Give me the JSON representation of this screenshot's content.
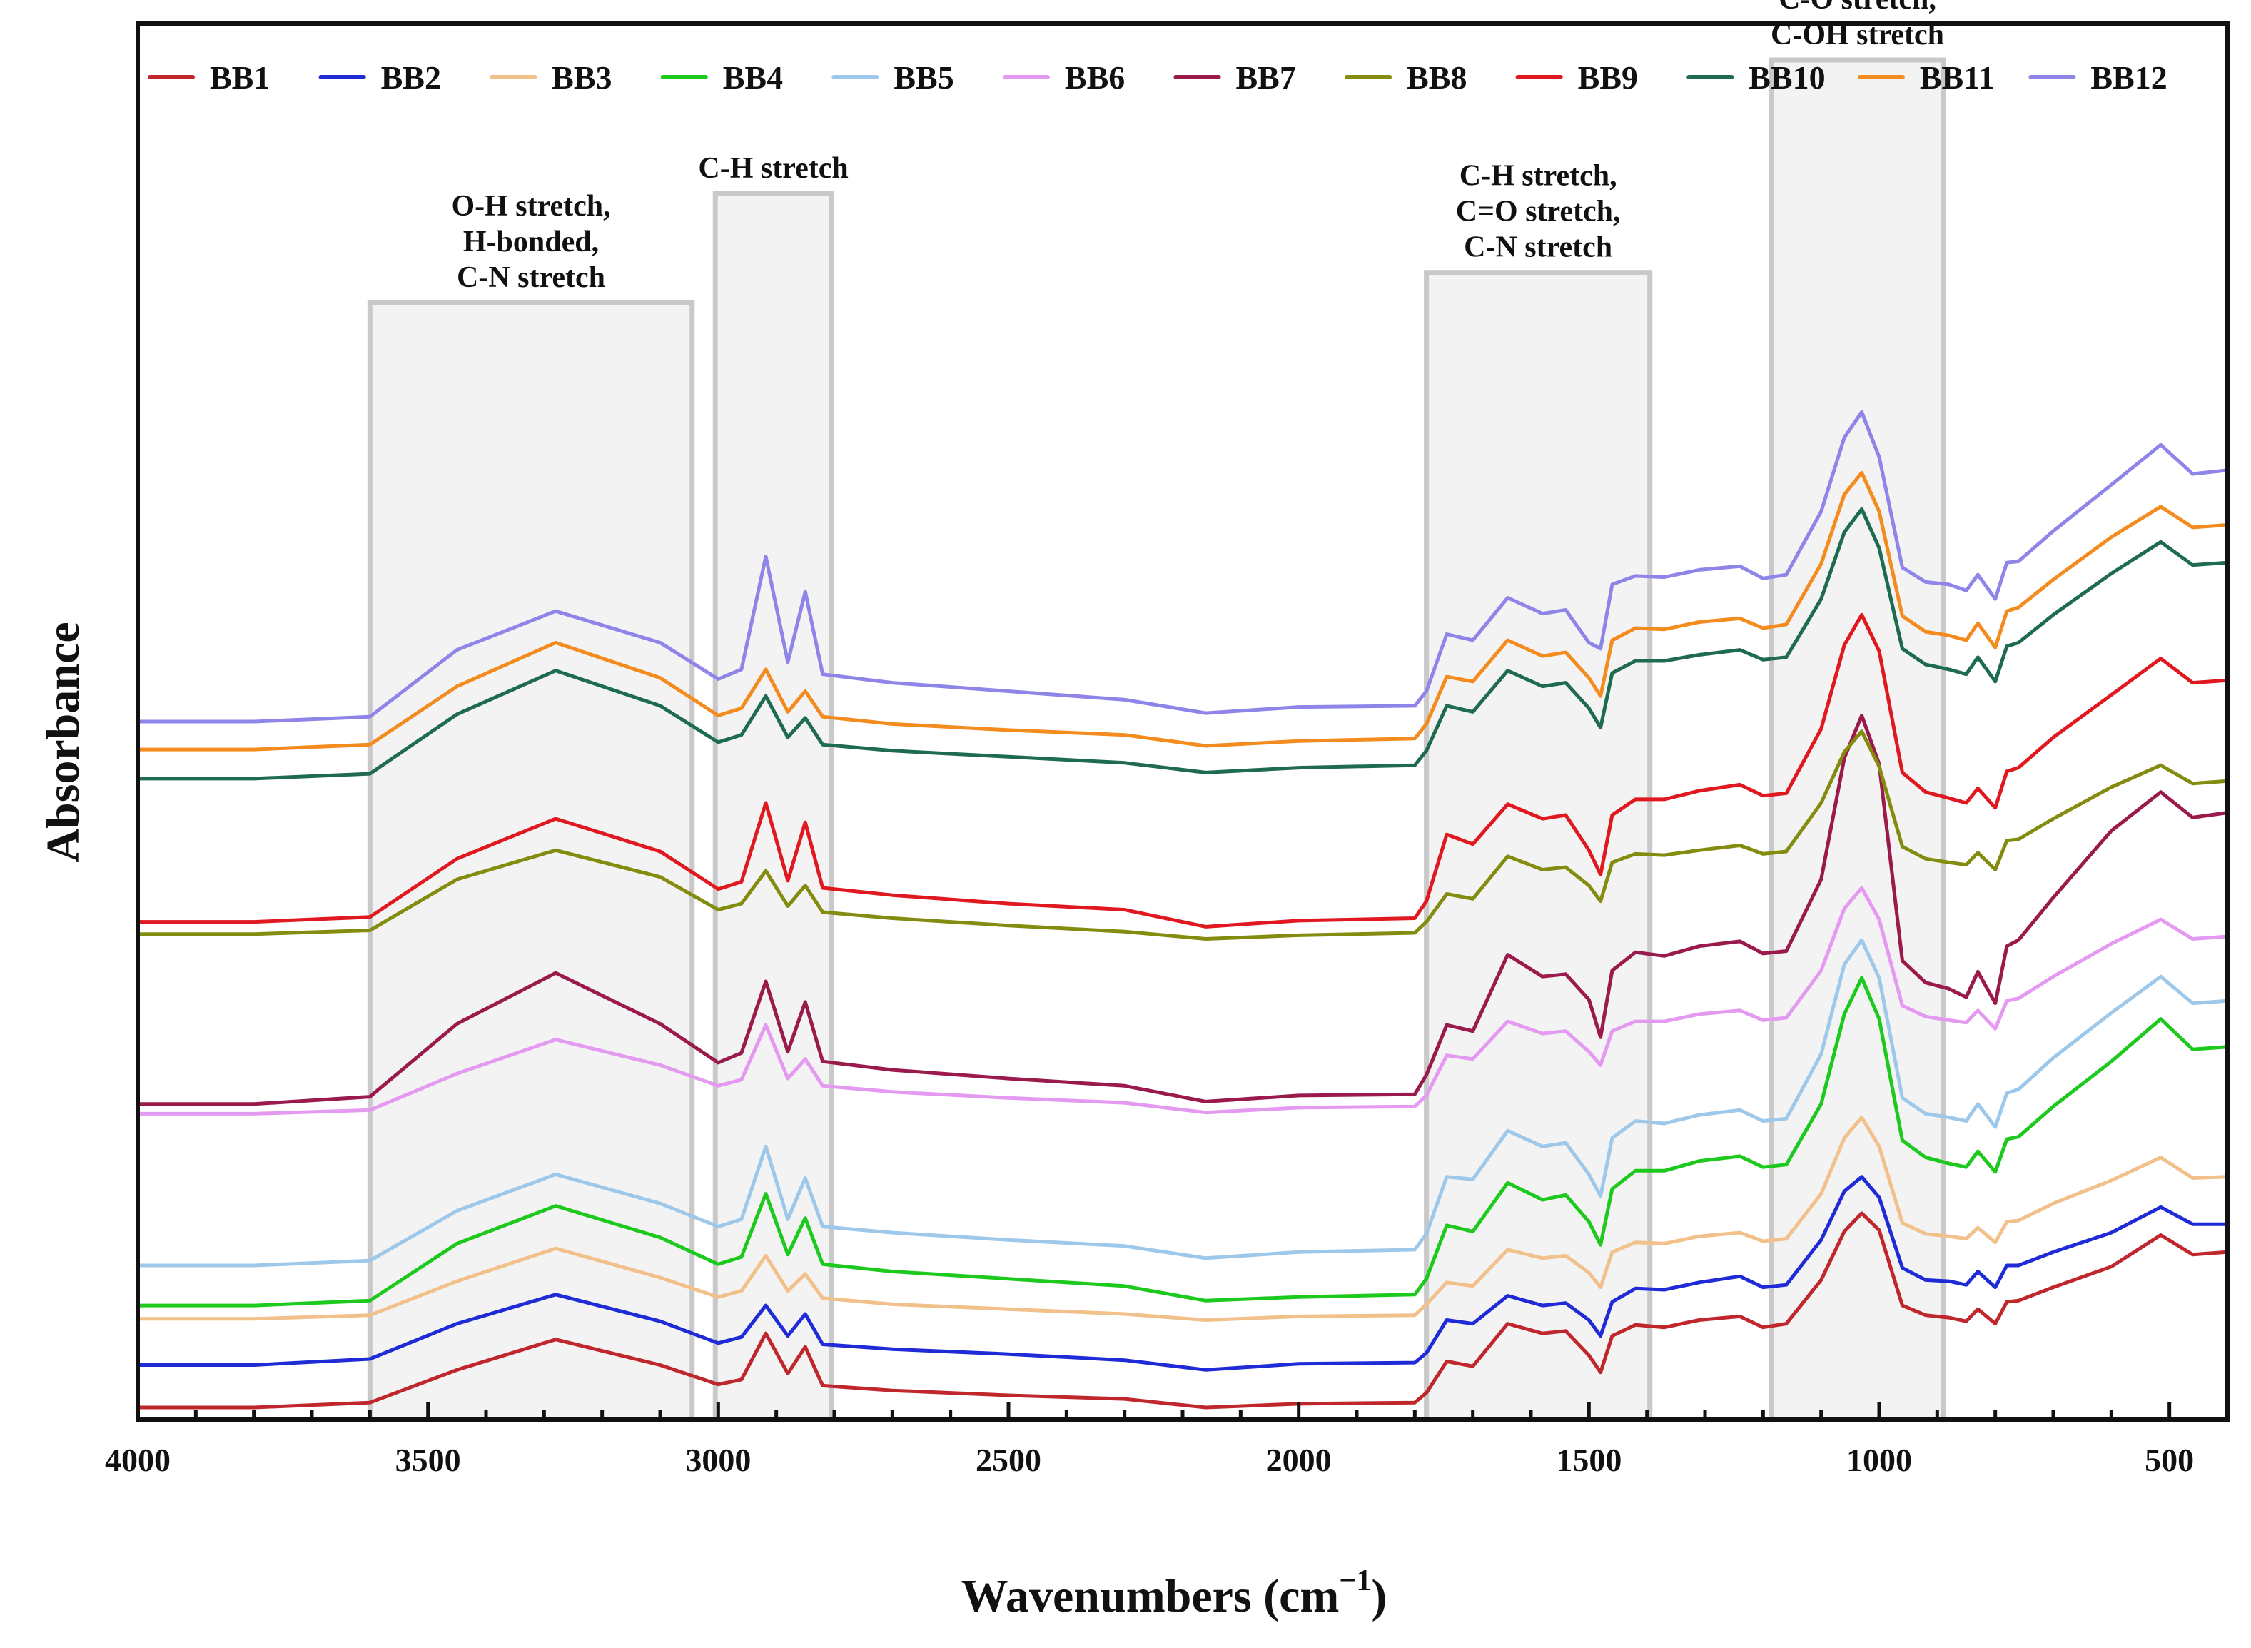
{
  "chart_data": {
    "type": "line",
    "title": "",
    "xlabel": "Wavenumbers (cm",
    "xlabel_sup": "−1",
    "xlabel_close": ")",
    "ylabel": "Absorbance",
    "xlim": [
      4000,
      400
    ],
    "x_reversed": true,
    "ylim": [
      0,
      11.5
    ],
    "yticks_shown": false,
    "grid": false,
    "legend_position": "top",
    "xticks": [
      {
        "value": 4000,
        "label": "4000"
      },
      {
        "value": 3500,
        "label": "3500"
      },
      {
        "value": 3000,
        "label": "3000"
      },
      {
        "value": 2500,
        "label": "2500"
      },
      {
        "value": 2000,
        "label": "2000"
      },
      {
        "value": 1500,
        "label": "1500"
      },
      {
        "value": 1000,
        "label": "1000"
      },
      {
        "value": 500,
        "label": "500"
      }
    ],
    "x": [
      4000,
      3800,
      3600,
      3450,
      3280,
      3100,
      3000,
      2960,
      2918,
      2880,
      2850,
      2820,
      2700,
      2500,
      2300,
      2160,
      2000,
      1800,
      1780,
      1745,
      1700,
      1640,
      1580,
      1540,
      1500,
      1480,
      1460,
      1420,
      1370,
      1310,
      1240,
      1200,
      1160,
      1100,
      1060,
      1030,
      1000,
      960,
      920,
      880,
      850,
      830,
      800,
      780,
      760,
      700,
      600,
      515,
      460,
      400
    ],
    "series": [
      {
        "name": "BB1",
        "color": "#c0272d",
        "values": [
          0.1,
          0.1,
          0.14,
          0.41,
          0.66,
          0.45,
          0.29,
          0.33,
          0.71,
          0.38,
          0.6,
          0.28,
          0.24,
          0.2,
          0.17,
          0.1,
          0.13,
          0.14,
          0.22,
          0.48,
          0.44,
          0.79,
          0.71,
          0.73,
          0.53,
          0.39,
          0.69,
          0.78,
          0.76,
          0.82,
          0.85,
          0.76,
          0.79,
          1.15,
          1.55,
          1.7,
          1.56,
          0.94,
          0.86,
          0.84,
          0.81,
          0.91,
          0.79,
          0.97,
          0.98,
          1.09,
          1.26,
          1.52,
          1.36,
          1.38
        ]
      },
      {
        "name": "BB2",
        "color": "#1f2bd6",
        "values": [
          0.45,
          0.45,
          0.5,
          0.79,
          1.03,
          0.81,
          0.63,
          0.68,
          0.94,
          0.69,
          0.87,
          0.62,
          0.58,
          0.54,
          0.49,
          0.41,
          0.46,
          0.47,
          0.55,
          0.82,
          0.79,
          1.02,
          0.94,
          0.96,
          0.82,
          0.69,
          0.97,
          1.08,
          1.07,
          1.13,
          1.18,
          1.09,
          1.11,
          1.48,
          1.88,
          2.0,
          1.83,
          1.25,
          1.15,
          1.14,
          1.11,
          1.22,
          1.09,
          1.27,
          1.27,
          1.38,
          1.54,
          1.75,
          1.61,
          1.61
        ]
      },
      {
        "name": "BB3",
        "color": "#f2c08a",
        "values": [
          0.83,
          0.83,
          0.86,
          1.14,
          1.41,
          1.17,
          1.01,
          1.06,
          1.35,
          1.06,
          1.2,
          1.0,
          0.95,
          0.91,
          0.87,
          0.82,
          0.85,
          0.86,
          0.95,
          1.13,
          1.1,
          1.4,
          1.33,
          1.35,
          1.21,
          1.09,
          1.38,
          1.46,
          1.45,
          1.51,
          1.54,
          1.47,
          1.49,
          1.86,
          2.32,
          2.49,
          2.25,
          1.62,
          1.53,
          1.51,
          1.49,
          1.58,
          1.46,
          1.63,
          1.64,
          1.78,
          1.97,
          2.16,
          1.99,
          2.0
        ]
      },
      {
        "name": "BB4",
        "color": "#1ec91e",
        "values": [
          0.94,
          0.94,
          0.98,
          1.45,
          1.76,
          1.5,
          1.28,
          1.34,
          1.86,
          1.36,
          1.66,
          1.28,
          1.22,
          1.16,
          1.1,
          0.98,
          1.01,
          1.03,
          1.16,
          1.6,
          1.55,
          1.95,
          1.81,
          1.85,
          1.63,
          1.44,
          1.9,
          2.05,
          2.05,
          2.13,
          2.17,
          2.08,
          2.1,
          2.6,
          3.34,
          3.64,
          3.3,
          2.3,
          2.16,
          2.11,
          2.08,
          2.21,
          2.04,
          2.31,
          2.33,
          2.58,
          2.95,
          3.3,
          3.05,
          3.07
        ]
      },
      {
        "name": "BB5",
        "color": "#9ec8ea",
        "values": [
          1.27,
          1.27,
          1.31,
          1.72,
          2.02,
          1.78,
          1.59,
          1.65,
          2.25,
          1.65,
          1.99,
          1.59,
          1.54,
          1.48,
          1.43,
          1.33,
          1.38,
          1.4,
          1.53,
          2.0,
          1.98,
          2.38,
          2.25,
          2.28,
          2.02,
          1.84,
          2.32,
          2.46,
          2.44,
          2.51,
          2.55,
          2.46,
          2.48,
          3.01,
          3.75,
          3.95,
          3.64,
          2.65,
          2.52,
          2.49,
          2.46,
          2.6,
          2.41,
          2.69,
          2.72,
          2.98,
          3.35,
          3.65,
          3.43,
          3.45
        ]
      },
      {
        "name": "BB6",
        "color": "#e49af0",
        "values": [
          2.52,
          2.52,
          2.55,
          2.85,
          3.13,
          2.92,
          2.75,
          2.8,
          3.25,
          2.81,
          2.97,
          2.75,
          2.7,
          2.65,
          2.61,
          2.53,
          2.57,
          2.58,
          2.67,
          3.0,
          2.97,
          3.28,
          3.18,
          3.2,
          3.03,
          2.92,
          3.2,
          3.28,
          3.28,
          3.34,
          3.37,
          3.29,
          3.31,
          3.7,
          4.21,
          4.38,
          4.12,
          3.41,
          3.32,
          3.29,
          3.27,
          3.37,
          3.22,
          3.45,
          3.47,
          3.65,
          3.92,
          4.12,
          3.96,
          3.98
        ]
      },
      {
        "name": "BB7",
        "color": "#9b1a4c",
        "values": [
          2.6,
          2.6,
          2.66,
          3.26,
          3.68,
          3.26,
          2.94,
          3.02,
          3.61,
          3.03,
          3.44,
          2.95,
          2.88,
          2.81,
          2.75,
          2.62,
          2.67,
          2.68,
          2.84,
          3.25,
          3.2,
          3.83,
          3.65,
          3.67,
          3.46,
          3.15,
          3.7,
          3.85,
          3.82,
          3.9,
          3.94,
          3.84,
          3.86,
          4.45,
          5.45,
          5.8,
          5.4,
          3.78,
          3.6,
          3.55,
          3.48,
          3.69,
          3.43,
          3.9,
          3.95,
          4.3,
          4.85,
          5.17,
          4.96,
          5.0
        ]
      },
      {
        "name": "BB8",
        "color": "#848c10",
        "values": [
          4.0,
          4.0,
          4.03,
          4.45,
          4.69,
          4.47,
          4.2,
          4.25,
          4.52,
          4.23,
          4.4,
          4.18,
          4.13,
          4.07,
          4.02,
          3.96,
          3.99,
          4.01,
          4.1,
          4.33,
          4.29,
          4.64,
          4.53,
          4.55,
          4.4,
          4.27,
          4.59,
          4.66,
          4.65,
          4.69,
          4.73,
          4.66,
          4.68,
          5.08,
          5.5,
          5.67,
          5.38,
          4.72,
          4.62,
          4.59,
          4.57,
          4.67,
          4.53,
          4.77,
          4.78,
          4.95,
          5.21,
          5.39,
          5.24,
          5.26
        ]
      },
      {
        "name": "BB9",
        "color": "#e0181f",
        "values": [
          4.1,
          4.1,
          4.14,
          4.62,
          4.95,
          4.68,
          4.37,
          4.43,
          5.08,
          4.44,
          4.92,
          4.38,
          4.32,
          4.25,
          4.2,
          4.06,
          4.11,
          4.13,
          4.27,
          4.82,
          4.74,
          5.07,
          4.95,
          4.98,
          4.69,
          4.49,
          4.98,
          5.11,
          5.11,
          5.18,
          5.23,
          5.14,
          5.16,
          5.69,
          6.38,
          6.63,
          6.33,
          5.33,
          5.17,
          5.12,
          5.08,
          5.2,
          5.04,
          5.34,
          5.37,
          5.62,
          5.97,
          6.27,
          6.07,
          6.09
        ]
      },
      {
        "name": "BB10",
        "color": "#1f6b4f",
        "values": [
          5.28,
          5.28,
          5.32,
          5.81,
          6.17,
          5.88,
          5.58,
          5.64,
          5.96,
          5.62,
          5.78,
          5.56,
          5.51,
          5.46,
          5.41,
          5.33,
          5.37,
          5.39,
          5.51,
          5.88,
          5.83,
          6.17,
          6.04,
          6.07,
          5.86,
          5.7,
          6.15,
          6.25,
          6.25,
          6.3,
          6.34,
          6.26,
          6.28,
          6.76,
          7.31,
          7.5,
          7.18,
          6.35,
          6.22,
          6.18,
          6.14,
          6.28,
          6.08,
          6.37,
          6.4,
          6.63,
          6.97,
          7.23,
          7.04,
          7.06
        ]
      },
      {
        "name": "BB11",
        "color": "#f38b1f",
        "values": [
          5.52,
          5.52,
          5.56,
          6.04,
          6.4,
          6.11,
          5.8,
          5.86,
          6.18,
          5.83,
          6.0,
          5.79,
          5.73,
          5.68,
          5.64,
          5.55,
          5.59,
          5.61,
          5.73,
          6.12,
          6.08,
          6.42,
          6.29,
          6.32,
          6.11,
          5.96,
          6.42,
          6.52,
          6.51,
          6.57,
          6.6,
          6.52,
          6.55,
          7.05,
          7.62,
          7.8,
          7.48,
          6.62,
          6.49,
          6.46,
          6.42,
          6.56,
          6.36,
          6.66,
          6.69,
          6.92,
          7.27,
          7.52,
          7.35,
          7.37
        ]
      },
      {
        "name": "BB12",
        "color": "#8f84e8",
        "values": [
          5.75,
          5.75,
          5.79,
          6.34,
          6.66,
          6.4,
          6.1,
          6.18,
          7.11,
          6.24,
          6.82,
          6.14,
          6.07,
          6.0,
          5.93,
          5.82,
          5.87,
          5.88,
          6.0,
          6.47,
          6.42,
          6.77,
          6.64,
          6.67,
          6.4,
          6.35,
          6.88,
          6.95,
          6.94,
          7.0,
          7.03,
          6.93,
          6.96,
          7.48,
          8.09,
          8.3,
          7.93,
          7.02,
          6.9,
          6.88,
          6.83,
          6.96,
          6.76,
          7.06,
          7.07,
          7.32,
          7.7,
          8.03,
          7.79,
          7.82
        ]
      }
    ],
    "annotations": [
      {
        "name": "band-oh",
        "x_from": 3600,
        "x_to": 3045,
        "y_top": 9.2,
        "lines": [
          "O-H stretch,",
          "H-bonded,",
          "C-N stretch"
        ]
      },
      {
        "name": "band-ch",
        "x_from": 3005,
        "x_to": 2805,
        "y_top": 10.1,
        "lines": [
          "C-H stretch"
        ]
      },
      {
        "name": "band-ch-co-cn",
        "x_from": 1780,
        "x_to": 1395,
        "y_top": 9.45,
        "lines": [
          "C-H stretch,",
          "C=O stretch,",
          "C-N stretch"
        ]
      },
      {
        "name": "band-co",
        "x_from": 1185,
        "x_to": 890,
        "y_top": 11.2,
        "lines": [
          "C-O stretch,",
          "C-OH stretch"
        ]
      }
    ]
  }
}
